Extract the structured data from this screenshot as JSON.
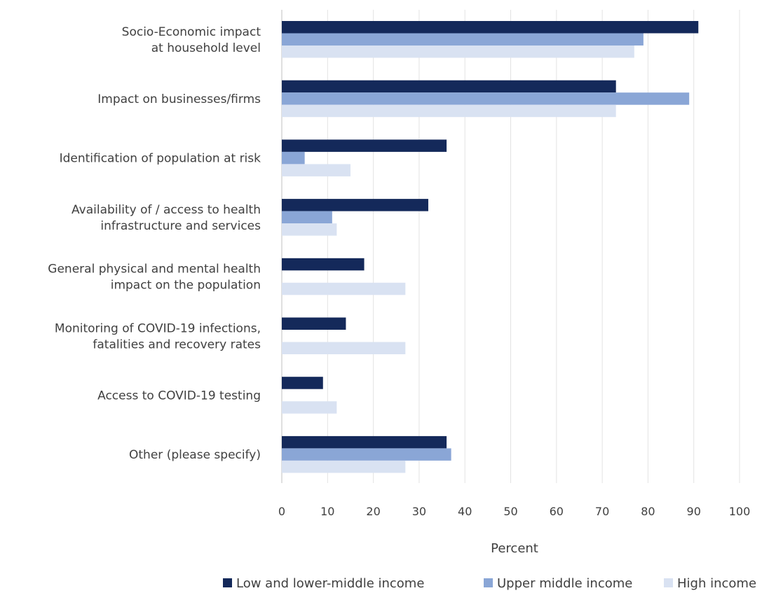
{
  "chart_data": {
    "type": "bar",
    "orientation": "horizontal",
    "categories": [
      [
        "Socio-Economic impact",
        "at household level"
      ],
      [
        "Impact on businesses/firms"
      ],
      [
        "Identification of population at risk"
      ],
      [
        "Availability of / access to health",
        "infrastructure and services"
      ],
      [
        "General physical and mental health",
        "impact on the population"
      ],
      [
        "Monitoring of COVID-19 infections,",
        "fatalities and recovery rates"
      ],
      [
        "Access to COVID-19 testing"
      ],
      [
        "Other (please specify)"
      ]
    ],
    "series": [
      {
        "name": "Low and lower-middle income",
        "color": "#14295a",
        "values": [
          91,
          73,
          36,
          32,
          18,
          14,
          9,
          36
        ]
      },
      {
        "name": "Upper middle income",
        "color": "#8aa6d6",
        "values": [
          79,
          89,
          5,
          11,
          0,
          0,
          0,
          37
        ]
      },
      {
        "name": "High income",
        "color": "#d9e2f2",
        "values": [
          77,
          73,
          15,
          12,
          27,
          27,
          12,
          27
        ]
      }
    ],
    "xlim": [
      0,
      100
    ],
    "xticks": [
      0,
      10,
      20,
      30,
      40,
      50,
      60,
      70,
      80,
      90,
      100
    ],
    "xlabel": "Percent",
    "ylabel": "",
    "grid": "vertical",
    "legend_position": "bottom"
  }
}
